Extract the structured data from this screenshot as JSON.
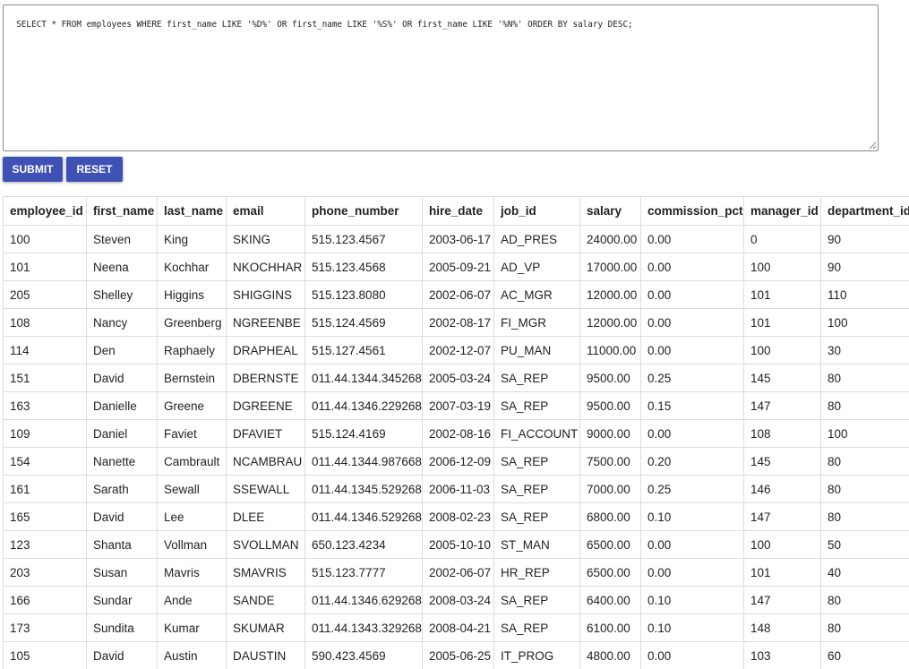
{
  "query": {
    "text": "SELECT * FROM employees WHERE first_name LIKE '%D%' OR first_name LIKE '%S%' OR first_name LIKE '%N%' ORDER BY salary DESC;"
  },
  "buttons": {
    "submit": "SUBMIT",
    "reset": "RESET"
  },
  "colors": {
    "button_bg": "#3f51b5",
    "button_text": "#ffffff"
  },
  "table": {
    "columns": [
      "employee_id",
      "first_name",
      "last_name",
      "email",
      "phone_number",
      "hire_date",
      "job_id",
      "salary",
      "commission_pct",
      "manager_id",
      "department_id"
    ],
    "rows": [
      [
        "100",
        "Steven",
        "King",
        "SKING",
        "515.123.4567",
        "2003-06-17",
        "AD_PRES",
        "24000.00",
        "0.00",
        "0",
        "90"
      ],
      [
        "101",
        "Neena",
        "Kochhar",
        "NKOCHHAR",
        "515.123.4568",
        "2005-09-21",
        "AD_VP",
        "17000.00",
        "0.00",
        "100",
        "90"
      ],
      [
        "205",
        "Shelley",
        "Higgins",
        "SHIGGINS",
        "515.123.8080",
        "2002-06-07",
        "AC_MGR",
        "12000.00",
        "0.00",
        "101",
        "110"
      ],
      [
        "108",
        "Nancy",
        "Greenberg",
        "NGREENBE",
        "515.124.4569",
        "2002-08-17",
        "FI_MGR",
        "12000.00",
        "0.00",
        "101",
        "100"
      ],
      [
        "114",
        "Den",
        "Raphaely",
        "DRAPHEAL",
        "515.127.4561",
        "2002-12-07",
        "PU_MAN",
        "11000.00",
        "0.00",
        "100",
        "30"
      ],
      [
        "151",
        "David",
        "Bernstein",
        "DBERNSTE",
        "011.44.1344.345268",
        "2005-03-24",
        "SA_REP",
        "9500.00",
        "0.25",
        "145",
        "80"
      ],
      [
        "163",
        "Danielle",
        "Greene",
        "DGREENE",
        "011.44.1346.229268",
        "2007-03-19",
        "SA_REP",
        "9500.00",
        "0.15",
        "147",
        "80"
      ],
      [
        "109",
        "Daniel",
        "Faviet",
        "DFAVIET",
        "515.124.4169",
        "2002-08-16",
        "FI_ACCOUNT",
        "9000.00",
        "0.00",
        "108",
        "100"
      ],
      [
        "154",
        "Nanette",
        "Cambrault",
        "NCAMBRAU",
        "011.44.1344.987668",
        "2006-12-09",
        "SA_REP",
        "7500.00",
        "0.20",
        "145",
        "80"
      ],
      [
        "161",
        "Sarath",
        "Sewall",
        "SSEWALL",
        "011.44.1345.529268",
        "2006-11-03",
        "SA_REP",
        "7000.00",
        "0.25",
        "146",
        "80"
      ],
      [
        "165",
        "David",
        "Lee",
        "DLEE",
        "011.44.1346.529268",
        "2008-02-23",
        "SA_REP",
        "6800.00",
        "0.10",
        "147",
        "80"
      ],
      [
        "123",
        "Shanta",
        "Vollman",
        "SVOLLMAN",
        "650.123.4234",
        "2005-10-10",
        "ST_MAN",
        "6500.00",
        "0.00",
        "100",
        "50"
      ],
      [
        "203",
        "Susan",
        "Mavris",
        "SMAVRIS",
        "515.123.7777",
        "2002-06-07",
        "HR_REP",
        "6500.00",
        "0.00",
        "101",
        "40"
      ],
      [
        "166",
        "Sundar",
        "Ande",
        "SANDE",
        "011.44.1346.629268",
        "2008-03-24",
        "SA_REP",
        "6400.00",
        "0.10",
        "147",
        "80"
      ],
      [
        "173",
        "Sundita",
        "Kumar",
        "SKUMAR",
        "011.44.1343.329268",
        "2008-04-21",
        "SA_REP",
        "6100.00",
        "0.10",
        "148",
        "80"
      ],
      [
        "105",
        "David",
        "Austin",
        "DAUSTIN",
        "590.423.4569",
        "2005-06-25",
        "IT_PROG",
        "4800.00",
        "0.00",
        "103",
        "60"
      ]
    ]
  }
}
